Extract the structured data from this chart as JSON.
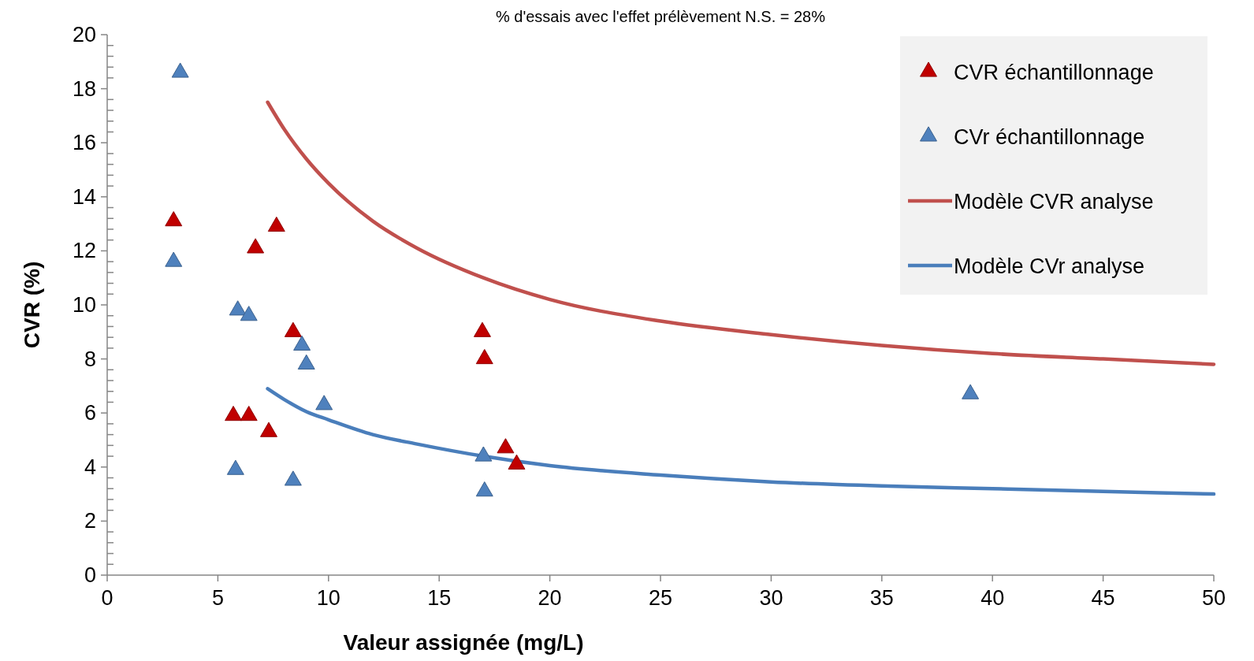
{
  "chart_data": {
    "type": "scatter",
    "title": "% d'essais avec l'effet prélèvement N.S. = 28%",
    "xlabel": "Valeur assignée (mg/L)",
    "ylabel": "CVR (%)",
    "xlim": [
      0,
      50
    ],
    "xticks": [
      0,
      5,
      10,
      15,
      20,
      25,
      30,
      35,
      40,
      45,
      50
    ],
    "ylim": [
      0,
      20
    ],
    "yticks": [
      0,
      {
        "value": 0.4,
        "label": null
      },
      {
        "value": 0.8,
        "label": null
      },
      {
        "value": 1.2,
        "label": null
      },
      {
        "value": 1.6,
        "label": null
      },
      2,
      {
        "value": 2.4,
        "label": null
      },
      {
        "value": 2.8,
        "label": null
      },
      {
        "value": 3.2,
        "label": null
      },
      {
        "value": 3.6,
        "label": null
      },
      4,
      {
        "value": 4.4,
        "label": null
      },
      {
        "value": 4.8,
        "label": null
      },
      {
        "value": 5.2,
        "label": null
      },
      {
        "value": 5.6,
        "label": null
      },
      6,
      {
        "value": 6.4,
        "label": null
      },
      {
        "value": 6.8,
        "label": null
      },
      {
        "value": 7.2,
        "label": null
      },
      {
        "value": 7.6,
        "label": null
      },
      8,
      {
        "value": 8.4,
        "label": null
      },
      {
        "value": 8.8,
        "label": null
      },
      {
        "value": 9.2,
        "label": null
      },
      {
        "value": 9.6,
        "label": null
      },
      10,
      {
        "value": 10.4,
        "label": null
      },
      {
        "value": 10.8,
        "label": null
      },
      {
        "value": 11.2,
        "label": null
      },
      {
        "value": 11.6,
        "label": null
      },
      12,
      {
        "value": 12.4,
        "label": null
      },
      {
        "value": 12.8,
        "label": null
      },
      {
        "value": 13.2,
        "label": null
      },
      {
        "value": 13.6,
        "label": null
      },
      14,
      {
        "value": 14.4,
        "label": null
      },
      {
        "value": 14.8,
        "label": null
      },
      {
        "value": 15.2,
        "label": null
      },
      {
        "value": 15.6,
        "label": null
      },
      16,
      {
        "value": 16.4,
        "label": null
      },
      {
        "value": 16.8,
        "label": null
      },
      {
        "value": 17.2,
        "label": null
      },
      {
        "value": 17.6,
        "label": null
      },
      18,
      {
        "value": 18.4,
        "label": null
      },
      {
        "value": 18.8,
        "label": null
      },
      {
        "value": 19.2,
        "label": null
      },
      {
        "value": 19.6,
        "label": null
      },
      20
    ],
    "legend": "top right",
    "grid": false,
    "series": [
      {
        "name": "CVR échantillonnage",
        "marker": "triangle",
        "color": "#c00000",
        "x": [
          3.0,
          6.7,
          7.65,
          8.4,
          5.7,
          6.4,
          7.3,
          16.95,
          17.05,
          18.0,
          18.5
        ],
        "values": [
          13.1,
          12.1,
          12.9,
          9.0,
          5.9,
          5.9,
          5.3,
          9.0,
          8.0,
          4.7,
          4.1
        ]
      },
      {
        "name": "CVr échantillonnage",
        "marker": "triangle",
        "color": "#4f81bd",
        "x": [
          3.3,
          3.0,
          5.9,
          6.4,
          8.8,
          9.0,
          9.8,
          5.8,
          8.4,
          17.0,
          17.05,
          39.0
        ],
        "values": [
          18.6,
          11.6,
          9.8,
          9.6,
          8.5,
          7.8,
          6.3,
          3.9,
          3.5,
          4.4,
          3.1,
          6.7
        ]
      },
      {
        "name": "Modèle CVR analyse",
        "type": "line",
        "marker": "none",
        "color": "#c0504d",
        "x": [
          7.25,
          8,
          9,
          10,
          12,
          14,
          17,
          20,
          25,
          30,
          35,
          40,
          45,
          50
        ],
        "values": [
          17.5,
          16.5,
          15.4,
          14.5,
          13.1,
          12.1,
          11.0,
          10.2,
          9.4,
          8.9,
          8.5,
          8.2,
          8.0,
          7.8
        ]
      },
      {
        "name": "Modèle CVr analyse",
        "type": "line",
        "marker": "none",
        "color": "#4a7ebb",
        "x": [
          7.25,
          8,
          9,
          10,
          12,
          14,
          17,
          20,
          25,
          30,
          35,
          40,
          45,
          50
        ],
        "values": [
          6.9,
          6.5,
          6.05,
          5.75,
          5.2,
          4.85,
          4.4,
          4.05,
          3.7,
          3.45,
          3.3,
          3.2,
          3.1,
          3.0
        ]
      }
    ]
  }
}
